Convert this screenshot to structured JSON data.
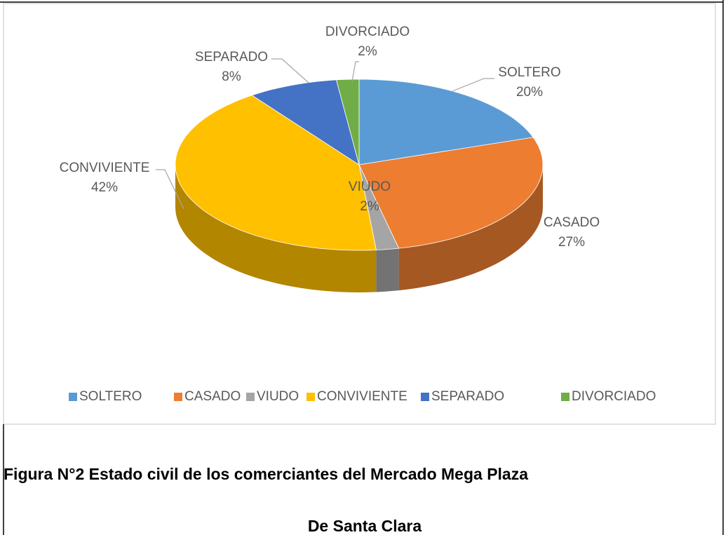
{
  "chart_data": {
    "type": "pie",
    "categories": [
      "SOLTERO",
      "CASADO",
      "VIUDO",
      "CONVIVIENTE",
      "SEPARADO",
      "DIVORCIADO"
    ],
    "values": [
      20,
      27,
      2,
      42,
      8,
      2
    ],
    "value_labels": [
      "20%",
      "27%",
      "2%",
      "42%",
      "8%",
      "2%"
    ],
    "colors": [
      "#5b9bd5",
      "#ed7d31",
      "#a5a5a5",
      "#ffc000",
      "#4472c4",
      "#70ad47"
    ],
    "legend": "bottom"
  },
  "caption": [
    "Figura N°2 Estado civil de los comerciantes del Mercado Mega Plaza",
    "De Santa Clara"
  ]
}
